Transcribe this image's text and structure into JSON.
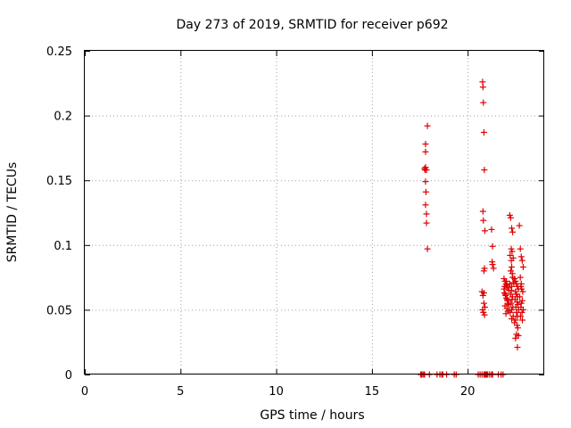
{
  "chart_data": {
    "type": "scatter",
    "title": "Day 273 of 2019, SRMTID for receiver p692",
    "xlabel": "GPS time / hours",
    "ylabel": "SRMTID / TECUs",
    "xlim": [
      0,
      24
    ],
    "ylim": [
      0,
      0.25
    ],
    "x_ticks": [
      0,
      5,
      10,
      15,
      20
    ],
    "x_tick_labels": [
      "0",
      "5",
      "10",
      "15",
      "20"
    ],
    "y_ticks": [
      0,
      0.05,
      0.1,
      0.15,
      0.2,
      0.25
    ],
    "y_tick_labels": [
      "0",
      "0.05",
      "0.1",
      "0.15",
      "0.2",
      "0.25"
    ],
    "grid": true,
    "marker": "plus",
    "color": "#dd0000",
    "series": [
      {
        "x": [
          17.6,
          17.75,
          17.9,
          17.8,
          17.8,
          17.8,
          17.75,
          17.78,
          17.8,
          17.82,
          17.8,
          17.85,
          17.85,
          17.9,
          17.85,
          17.55,
          17.62,
          17.7,
          18.0,
          18.4,
          18.55,
          18.65,
          18.7,
          18.9,
          19.3,
          19.4,
          20.55,
          20.65,
          20.75,
          20.85,
          20.9,
          20.95,
          21.0,
          21.05,
          21.15,
          21.25,
          21.3,
          21.6,
          21.75,
          21.85,
          20.78,
          20.8,
          20.82,
          20.85,
          20.87,
          20.8,
          20.82,
          20.9,
          20.88,
          20.85,
          20.75,
          20.8,
          20.85,
          20.9,
          20.78,
          20.82,
          20.88,
          20.85,
          21.25,
          21.3,
          21.28,
          21.3,
          21.35,
          21.9,
          21.95,
          22.0,
          22.05,
          22.1,
          22.15,
          21.92,
          21.98,
          22.02,
          22.08,
          22.12,
          21.95,
          22.05,
          22.1,
          22.0,
          21.9,
          22.02,
          21.97,
          22.07,
          22.15,
          21.93,
          22.2,
          22.25,
          22.3,
          22.35,
          22.28,
          22.32,
          22.22,
          22.38,
          22.3,
          22.25,
          22.35,
          22.4,
          22.2,
          22.3,
          22.28,
          22.24,
          22.34,
          22.32,
          22.26,
          22.36,
          22.3,
          22.22,
          22.38,
          22.3,
          22.28,
          22.33,
          22.45,
          22.5,
          22.55,
          22.6,
          22.65,
          22.5,
          22.55,
          22.6,
          22.48,
          22.58,
          22.62,
          22.52,
          22.66,
          22.55,
          22.6,
          22.5,
          22.45,
          22.58,
          22.62,
          22.55,
          22.5,
          22.6,
          22.65,
          22.55,
          22.7,
          22.75,
          22.8,
          22.85,
          22.9,
          22.75,
          22.8,
          22.78,
          22.82,
          22.88,
          22.72,
          22.85,
          22.8,
          22.78,
          22.9,
          22.84,
          22.76,
          22.86
        ],
        "y": [
          0,
          0,
          0.192,
          0.178,
          0.172,
          0.16,
          0.159,
          0.158,
          0.149,
          0.141,
          0.131,
          0.124,
          0.117,
          0.097,
          0.158,
          0,
          0,
          0,
          0,
          0,
          0,
          0,
          0,
          0,
          0,
          0,
          0,
          0,
          0,
          0,
          0,
          0,
          0,
          0,
          0,
          0,
          0,
          0,
          0,
          0,
          0.226,
          0.222,
          0.21,
          0.187,
          0.158,
          0.126,
          0.119,
          0.111,
          0.082,
          0.08,
          0.064,
          0.061,
          0.055,
          0.052,
          0.05,
          0.048,
          0.046,
          0.063,
          0.112,
          0.099,
          0.087,
          0.085,
          0.082,
          0.074,
          0.072,
          0.07,
          0.069,
          0.067,
          0.065,
          0.063,
          0.061,
          0.059,
          0.057,
          0.055,
          0.053,
          0.051,
          0.049,
          0.047,
          0.066,
          0.072,
          0.062,
          0.058,
          0.054,
          0.068,
          0.123,
          0.121,
          0.113,
          0.11,
          0.097,
          0.095,
          0.092,
          0.09,
          0.083,
          0.08,
          0.075,
          0.071,
          0.07,
          0.068,
          0.065,
          0.062,
          0.06,
          0.058,
          0.055,
          0.052,
          0.05,
          0.048,
          0.045,
          0.043,
          0.088,
          0.078,
          0.074,
          0.072,
          0.07,
          0.068,
          0.066,
          0.064,
          0.062,
          0.06,
          0.058,
          0.056,
          0.054,
          0.052,
          0.05,
          0.048,
          0.045,
          0.042,
          0.04,
          0.038,
          0.036,
          0.031,
          0.028,
          0.021,
          0.03,
          0.062,
          0.115,
          0.097,
          0.091,
          0.088,
          0.083,
          0.075,
          0.07,
          0.068,
          0.066,
          0.064,
          0.06,
          0.057,
          0.055,
          0.052,
          0.05,
          0.048,
          0.045,
          0.042
        ]
      }
    ]
  }
}
